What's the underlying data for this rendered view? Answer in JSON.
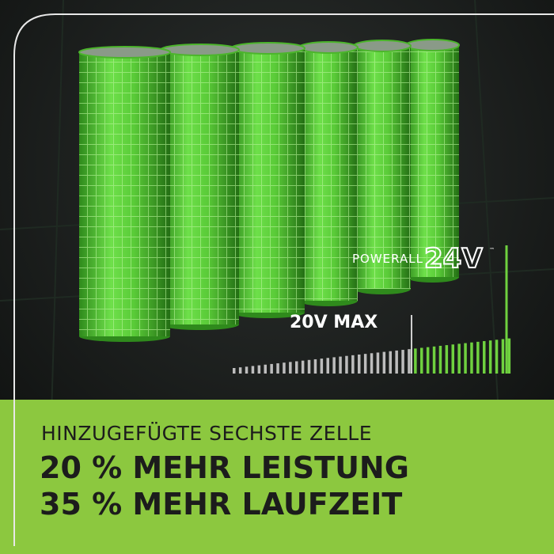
{
  "logo": {
    "brand": "POWERALL",
    "voltage": "24V",
    "trademark": "™"
  },
  "comparison_label": "20V MAX",
  "banner": {
    "subtitle": "HINZUGEFÜGTE SECHSTE ZELLE",
    "lines": [
      "20 % MEHR LEISTUNG",
      "35 % MEHR LAUFZEIT"
    ]
  }
}
